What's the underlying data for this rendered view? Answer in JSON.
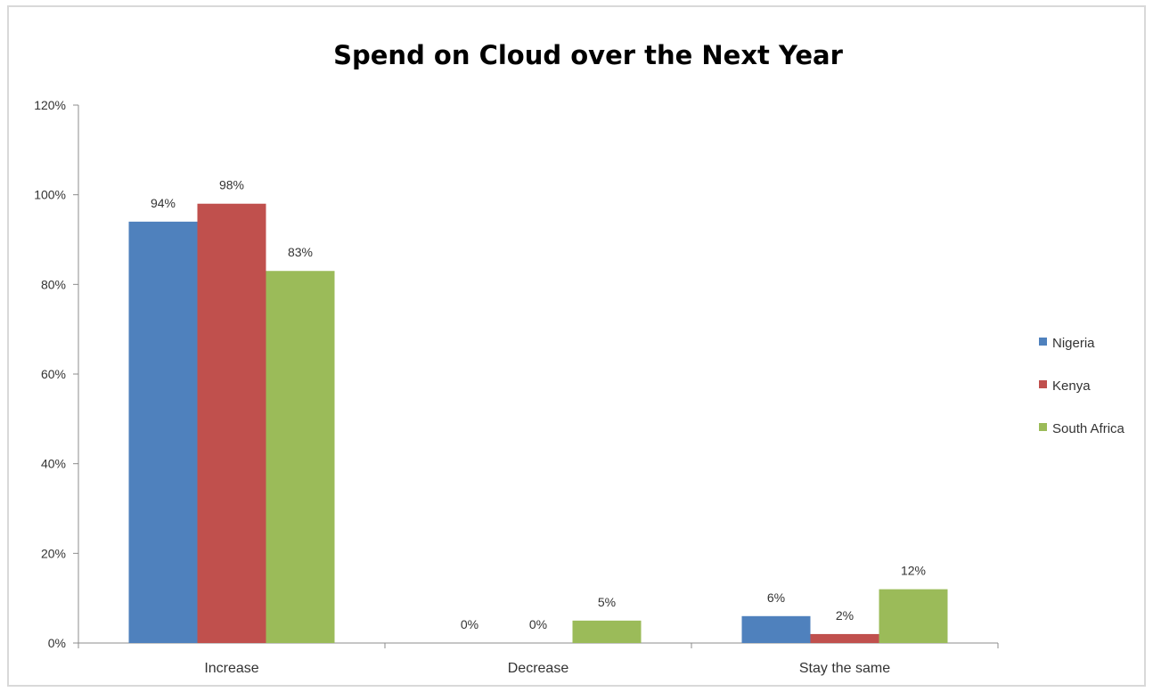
{
  "chart_data": {
    "type": "bar",
    "title": "Spend on Cloud over the Next Year",
    "xlabel": "",
    "ylabel": "",
    "categories": [
      "Increase",
      "Decrease",
      "Stay the same"
    ],
    "series": [
      {
        "name": "Nigeria",
        "color": "#4f81bd",
        "values": [
          94,
          0,
          6
        ],
        "labels": [
          "94%",
          "0%",
          "6%"
        ]
      },
      {
        "name": "Kenya",
        "color": "#c0504d",
        "values": [
          98,
          0,
          2
        ],
        "labels": [
          "98%",
          "0%",
          "2%"
        ]
      },
      {
        "name": "South Africa",
        "color": "#9bbb59",
        "values": [
          83,
          5,
          12
        ],
        "labels": [
          "83%",
          "5%",
          "12%"
        ]
      }
    ],
    "ylim": [
      0,
      120
    ],
    "yticks": [
      0,
      20,
      40,
      60,
      80,
      100,
      120
    ],
    "ytick_labels": [
      "0%",
      "20%",
      "40%",
      "60%",
      "80%",
      "100%",
      "120%"
    ],
    "grid": false,
    "legend": "right"
  }
}
